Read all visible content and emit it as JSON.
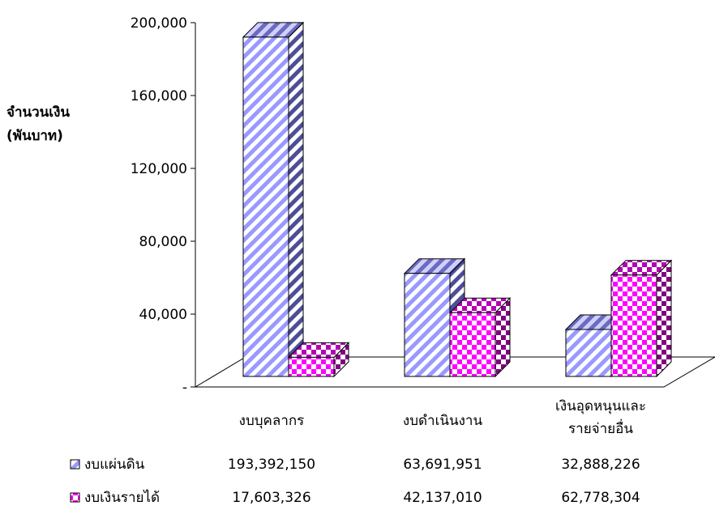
{
  "chart_data": {
    "type": "bar",
    "ylabel": [
      "จำนวนเงิน",
      "(พันบาท)"
    ],
    "ylim": [
      0,
      200000
    ],
    "yticks": [
      {
        "value": 0,
        "label": "-"
      },
      {
        "value": 40000,
        "label": "40,000"
      },
      {
        "value": 80000,
        "label": "80,000"
      },
      {
        "value": 120000,
        "label": "120,000"
      },
      {
        "value": 160000,
        "label": "160,000"
      },
      {
        "value": 200000,
        "label": "200,000"
      }
    ],
    "categories": [
      [
        "งบบุคลากร"
      ],
      [
        "งบดำเนินงาน"
      ],
      [
        "เงินอุดหนุนและ",
        "รายจ่ายอื่น"
      ]
    ],
    "series": [
      {
        "name": "งบแผ่นดิน",
        "pattern": "diagonal",
        "color": "#9999ff",
        "values": [
          193392.15,
          63691.951,
          32888.226
        ],
        "labels": [
          "193,392,150",
          "63,691,951",
          "32,888,226"
        ]
      },
      {
        "name": "งบเงินรายได้",
        "pattern": "checker",
        "color": "#ff00ff",
        "values": [
          17603.326,
          42137.01,
          62778.304
        ],
        "labels": [
          "17,603,326",
          "42,137,010",
          "62,778,304"
        ]
      }
    ],
    "legend": "bottom-table",
    "three_d": true,
    "grid": false
  }
}
